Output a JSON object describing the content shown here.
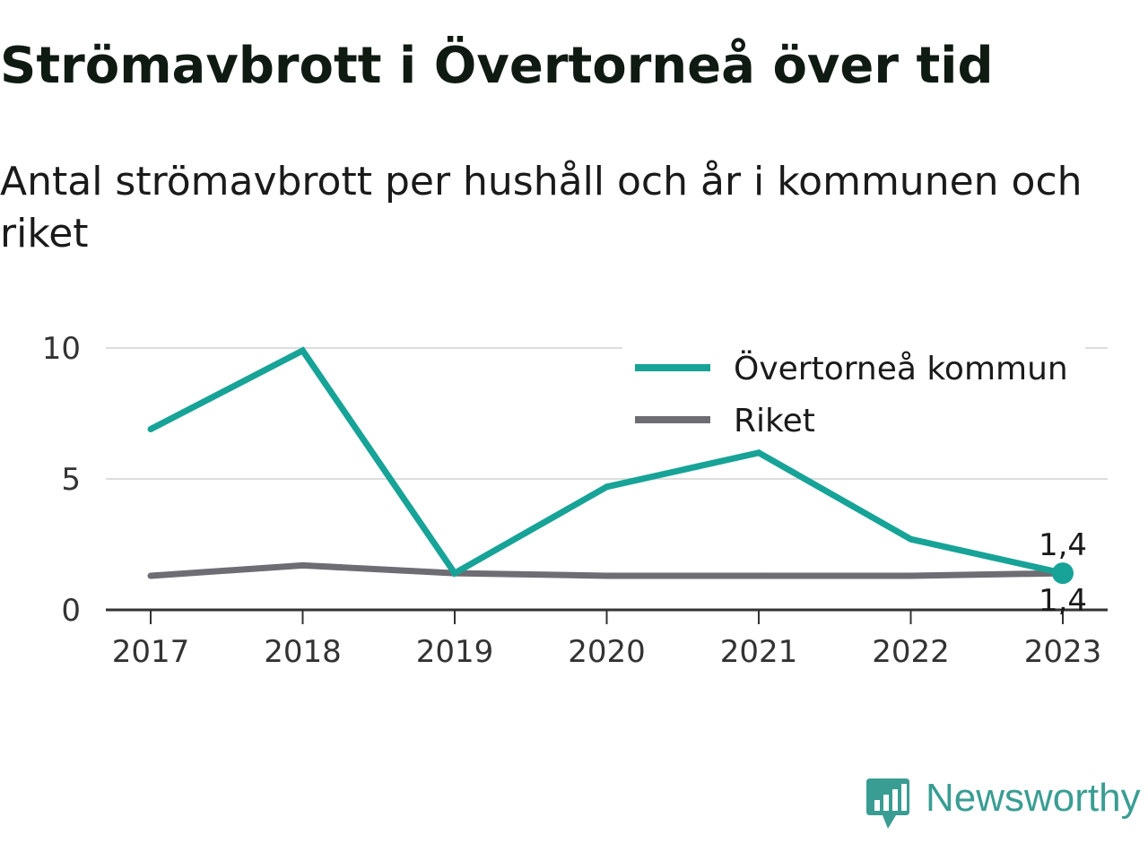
{
  "chart_data": {
    "type": "line",
    "title": "Strömavbrott i Övertorneå över tid",
    "subtitle": "Antal strömavbrott per hushåll och år i kommunen och riket",
    "x": [
      "2017",
      "2018",
      "2019",
      "2020",
      "2021",
      "2022",
      "2023"
    ],
    "y_ticks": [
      "0",
      "5",
      "10"
    ],
    "ylim": [
      0,
      10
    ],
    "grid": true,
    "legend_position": "top-right",
    "series": [
      {
        "name": "Övertorneå kommun",
        "color": "#17a397",
        "values": [
          6.9,
          9.9,
          1.4,
          4.7,
          6.0,
          2.7,
          1.4
        ]
      },
      {
        "name": "Riket",
        "color": "#6e6d73",
        "values": [
          1.3,
          1.7,
          1.4,
          1.3,
          1.3,
          1.3,
          1.4
        ]
      }
    ],
    "annotations": [
      {
        "series": 0,
        "x": "2023",
        "text": "1,4"
      },
      {
        "series": 1,
        "x": "2023",
        "text": "1,4"
      }
    ]
  },
  "brand": {
    "name": "Newsworthy",
    "icon": "newsworthy-logo-icon",
    "color": "#3a9d93"
  }
}
